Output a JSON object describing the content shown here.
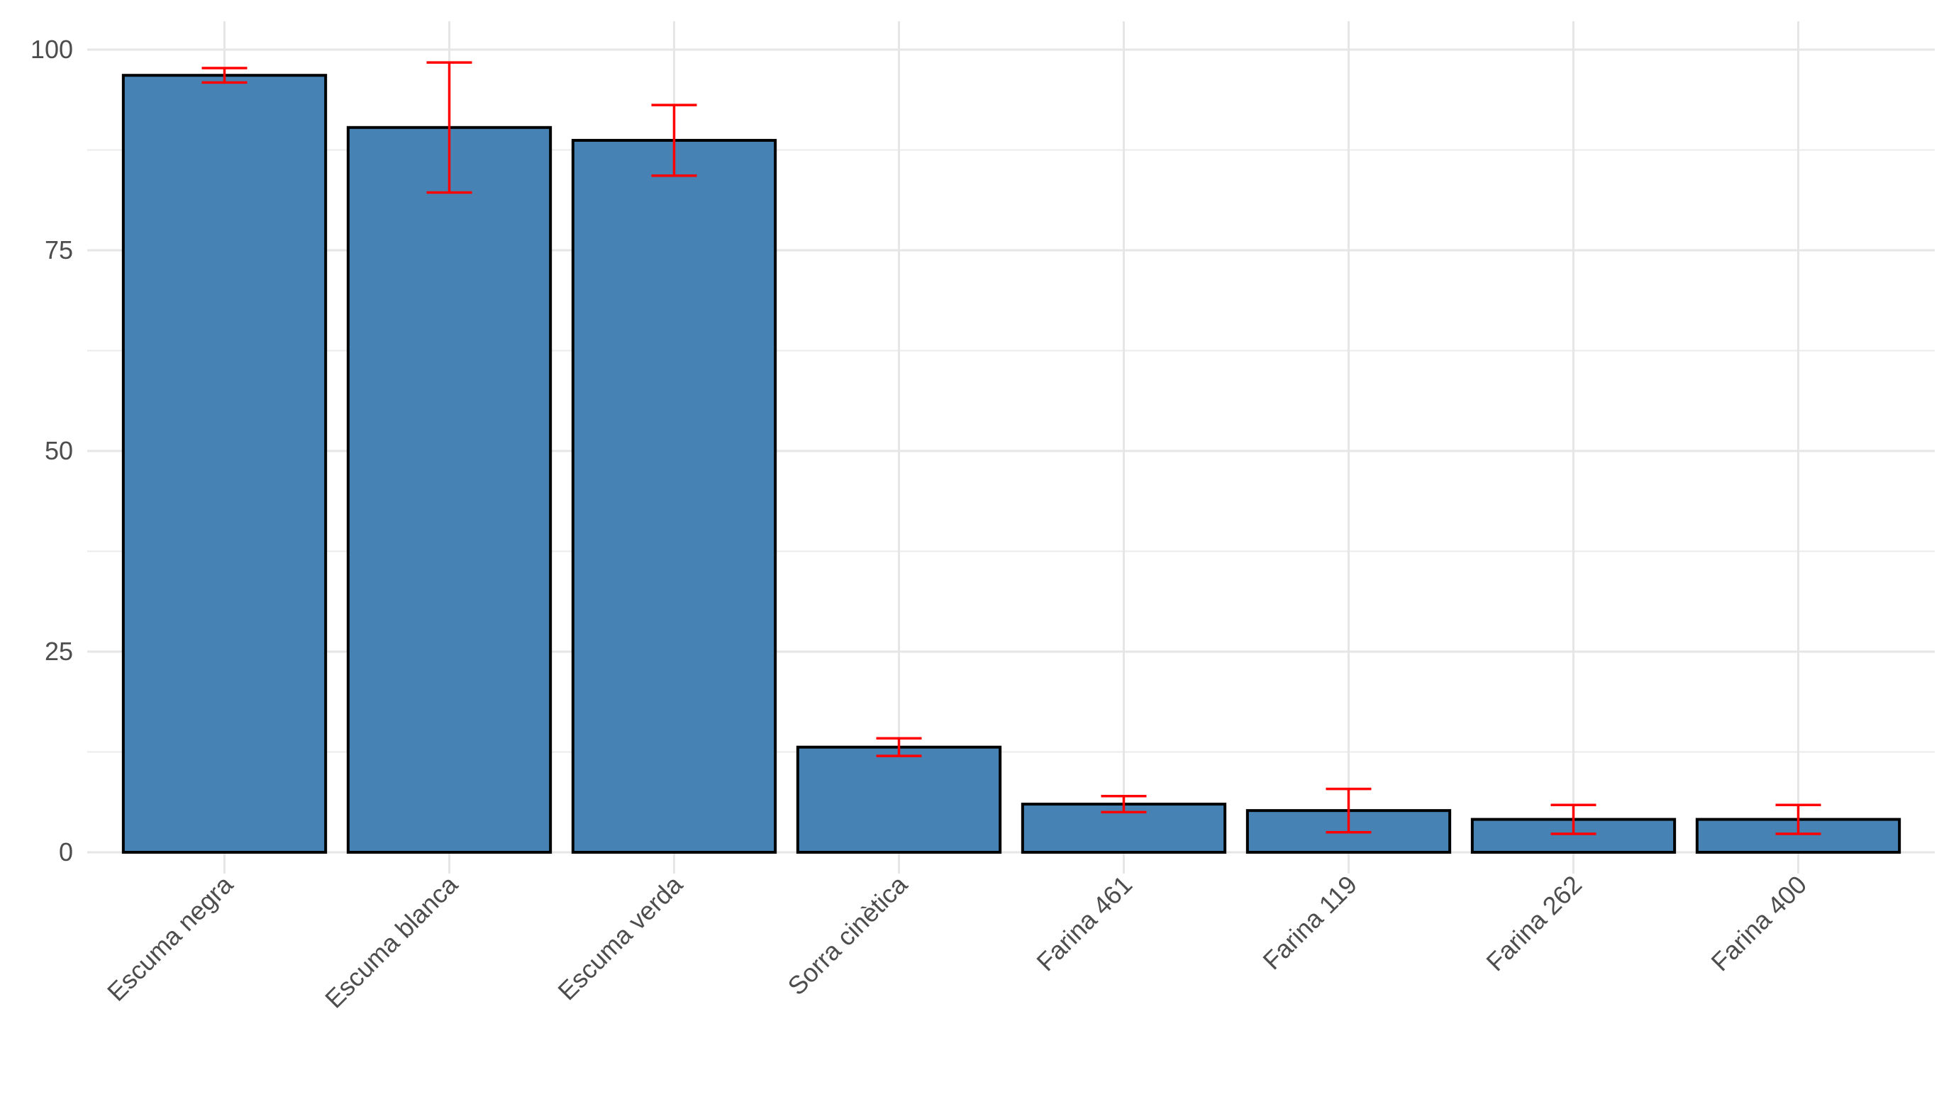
{
  "chart_data": {
    "type": "bar",
    "categories": [
      "Escuma negra",
      "Escuma blanca",
      "Escuma verda",
      "Sorra cinètica",
      "Farina 461",
      "Farina 119",
      "Farina 262",
      "Farina 400"
    ],
    "values": [
      96.8,
      90.3,
      88.7,
      13.1,
      6,
      5.2,
      4.1,
      4.1
    ],
    "errors": [
      0.9,
      8.1,
      4.4,
      1.1,
      1,
      2.7,
      1.8,
      1.8
    ],
    "color": "#4682b4",
    "error_color": "#ff0000",
    "ylim": [
      0,
      100
    ],
    "yticks": [
      0,
      25,
      50,
      75,
      100
    ],
    "grid": true
  }
}
